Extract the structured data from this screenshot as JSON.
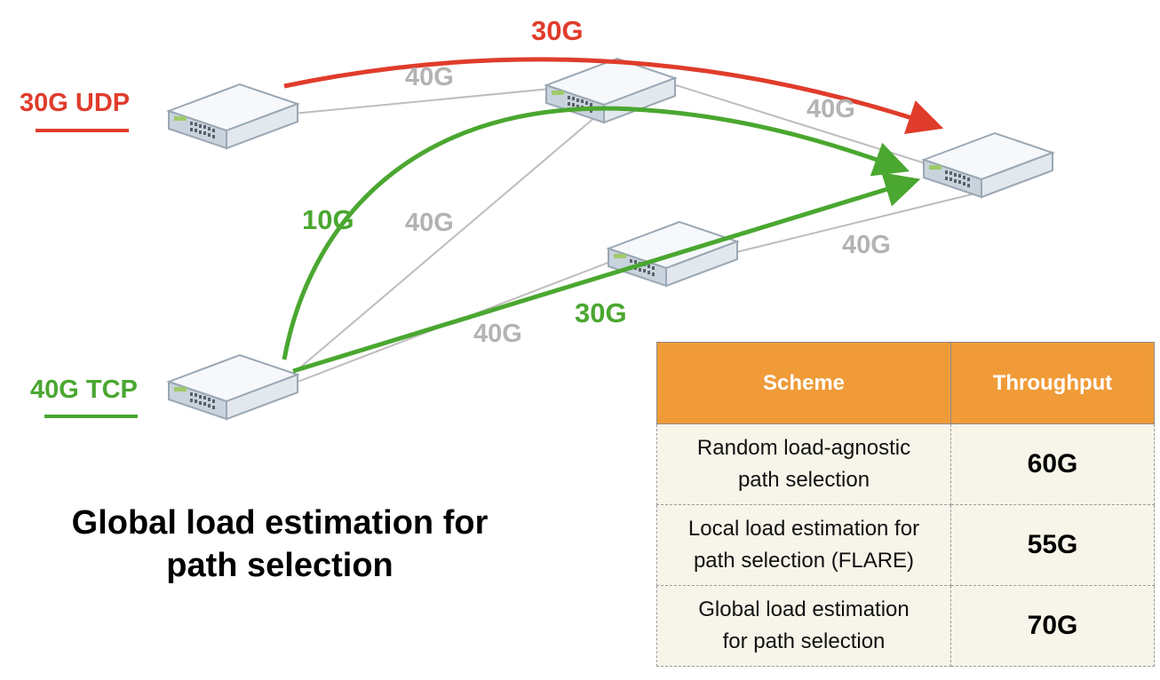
{
  "flows": {
    "udp": {
      "label": "30G UDP",
      "color": "#e03c2b"
    },
    "tcp": {
      "label": "40G TCP",
      "color": "#4aa730"
    }
  },
  "links": {
    "l1": "40G",
    "l2": "40G",
    "l3": "40G",
    "l4": "40G",
    "l5": "40G"
  },
  "paths": {
    "red_top": "30G",
    "green_curve": "10G",
    "green_straight": "30G"
  },
  "caption": {
    "line1": "Global load estimation for",
    "line2": "path selection"
  },
  "table": {
    "headers": [
      "Scheme",
      "Throughput"
    ],
    "rows": [
      {
        "scheme_line1": "Random load-agnostic",
        "scheme_line2": "path selection",
        "throughput": "60G"
      },
      {
        "scheme_line1": "Local load estimation for",
        "scheme_line2": "path selection (FLARE)",
        "throughput": "55G"
      },
      {
        "scheme_line1": "Global load estimation",
        "scheme_line2": "for path selection",
        "throughput": "70G"
      }
    ]
  }
}
